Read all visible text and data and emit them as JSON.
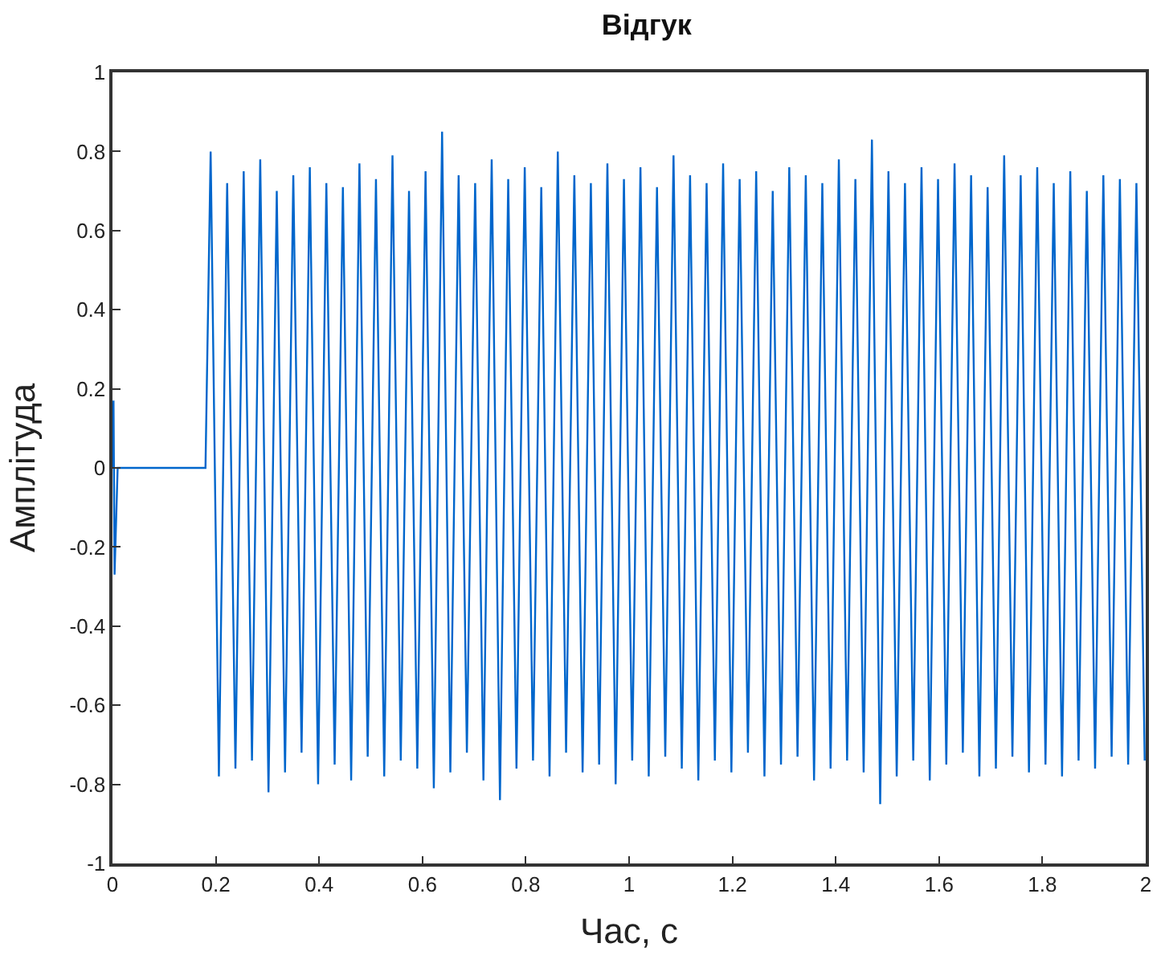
{
  "chart_data": {
    "type": "line",
    "title": "Відгук",
    "xlabel": "Час, с",
    "ylabel": "Амплітуда",
    "xlim": [
      0,
      2
    ],
    "xticks": [
      0,
      0.2,
      0.4,
      0.6,
      0.8,
      1,
      1.2,
      1.4,
      1.6,
      1.8,
      2
    ],
    "ylim": [
      -1,
      1
    ],
    "yticks": [
      -1,
      -0.8,
      -0.6,
      -0.4,
      -0.2,
      0,
      0.2,
      0.4,
      0.6,
      0.8,
      1
    ],
    "legend": false,
    "series": [
      {
        "color": "#0066cc",
        "x": [
          0,
          0.002,
          0.004,
          0.01,
          0.18,
          0.19,
          0.206,
          0.222,
          0.238,
          0.254,
          0.27,
          0.286,
          0.302,
          0.318,
          0.334,
          0.35,
          0.366,
          0.382,
          0.398,
          0.414,
          0.43,
          0.446,
          0.462,
          0.478,
          0.494,
          0.51,
          0.526,
          0.542,
          0.558,
          0.574,
          0.59,
          0.606,
          0.622,
          0.638,
          0.654,
          0.67,
          0.686,
          0.702,
          0.718,
          0.734,
          0.75,
          0.766,
          0.782,
          0.798,
          0.814,
          0.83,
          0.846,
          0.862,
          0.878,
          0.894,
          0.91,
          0.926,
          0.942,
          0.958,
          0.974,
          0.99,
          1.006,
          1.022,
          1.038,
          1.054,
          1.07,
          1.086,
          1.102,
          1.118,
          1.134,
          1.15,
          1.166,
          1.182,
          1.198,
          1.214,
          1.23,
          1.246,
          1.262,
          1.278,
          1.294,
          1.31,
          1.326,
          1.342,
          1.358,
          1.374,
          1.39,
          1.406,
          1.422,
          1.438,
          1.454,
          1.47,
          1.486,
          1.502,
          1.518,
          1.534,
          1.55,
          1.566,
          1.582,
          1.598,
          1.614,
          1.63,
          1.646,
          1.662,
          1.678,
          1.694,
          1.71,
          1.726,
          1.742,
          1.758,
          1.774,
          1.79,
          1.806,
          1.822,
          1.838,
          1.854,
          1.87,
          1.886,
          1.902,
          1.918,
          1.934,
          1.95,
          1.966,
          1.982,
          1.998
        ],
        "values": [
          0,
          0.17,
          -0.27,
          0,
          0,
          0.8,
          -0.78,
          0.72,
          -0.76,
          0.75,
          -0.74,
          0.78,
          -0.82,
          0.7,
          -0.77,
          0.74,
          -0.72,
          0.76,
          -0.8,
          0.72,
          -0.75,
          0.71,
          -0.79,
          0.77,
          -0.73,
          0.73,
          -0.78,
          0.79,
          -0.74,
          0.7,
          -0.76,
          0.75,
          -0.81,
          0.85,
          -0.77,
          0.74,
          -0.72,
          0.72,
          -0.79,
          0.78,
          -0.84,
          0.73,
          -0.76,
          0.76,
          -0.74,
          0.71,
          -0.78,
          0.8,
          -0.72,
          0.74,
          -0.77,
          0.72,
          -0.75,
          0.77,
          -0.8,
          0.73,
          -0.74,
          0.76,
          -0.78,
          0.71,
          -0.73,
          0.79,
          -0.76,
          0.74,
          -0.79,
          0.72,
          -0.74,
          0.77,
          -0.77,
          0.73,
          -0.72,
          0.75,
          -0.78,
          0.7,
          -0.75,
          0.76,
          -0.73,
          0.74,
          -0.79,
          0.72,
          -0.76,
          0.78,
          -0.74,
          0.73,
          -0.77,
          0.83,
          -0.85,
          0.75,
          -0.78,
          0.72,
          -0.74,
          0.76,
          -0.79,
          0.73,
          -0.75,
          0.77,
          -0.72,
          0.74,
          -0.78,
          0.71,
          -0.76,
          0.79,
          -0.73,
          0.74,
          -0.77,
          0.76,
          -0.75,
          0.72,
          -0.78,
          0.75,
          -0.74,
          0.7,
          -0.76,
          0.74,
          -0.73,
          0.73,
          -0.75,
          0.72,
          -0.74
        ]
      }
    ]
  }
}
